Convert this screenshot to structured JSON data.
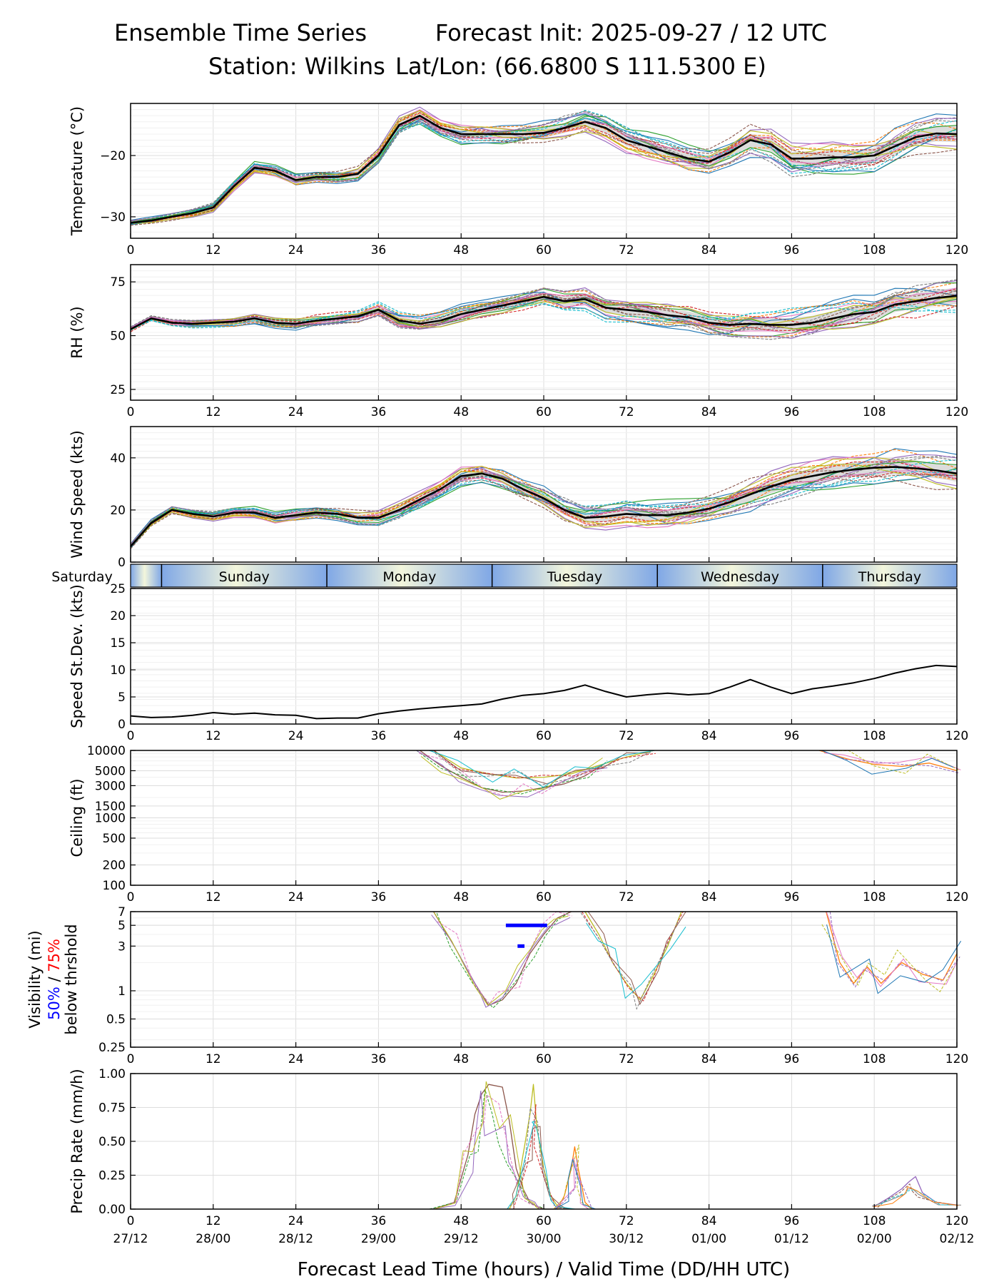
{
  "header": {
    "left": "Ensemble Time Series",
    "right": "Forecast Init: 2025-09-27 / 12 UTC",
    "station": "Station: Wilkins",
    "latlon": "Lat/Lon: (66.6800 S 111.5300 E)"
  },
  "colors": {
    "mean": "#000000",
    "spread": "#d3d3d3",
    "members": [
      "#1f77b4",
      "#ff7f0e",
      "#2ca02c",
      "#d62728",
      "#9467bd",
      "#8c564b",
      "#e377c2",
      "#7f7f7f",
      "#bcbd22",
      "#17becf"
    ],
    "day_gradient_light": "#f3f6dc",
    "day_gradient_dark": "#7fa7e6",
    "vis50": "#0000ff",
    "vis75": "#ff0000"
  },
  "x_axis": {
    "label": "Forecast Lead Time (hours) / Valid Time (DD/HH UTC)",
    "ticks": [
      0,
      12,
      24,
      36,
      48,
      60,
      72,
      84,
      96,
      108,
      120
    ],
    "tick_labels": [
      "0",
      "12",
      "24",
      "36",
      "48",
      "60",
      "72",
      "84",
      "96",
      "108",
      "120"
    ],
    "valid_labels": [
      "27/12",
      "28/00",
      "28/12",
      "29/00",
      "29/12",
      "30/00",
      "30/12",
      "01/00",
      "01/12",
      "02/00",
      "02/12"
    ]
  },
  "day_band": {
    "first_label": "Saturday",
    "days": [
      "Sunday",
      "Monday",
      "Tuesday",
      "Wednesday",
      "Thursday"
    ],
    "boundaries": [
      4.5,
      28.5,
      52.5,
      76.5,
      100.5
    ]
  },
  "chart_data": [
    {
      "id": "temp",
      "type": "line",
      "ylabel": "Temperature (°C)",
      "ylim": [
        -33.5,
        -11.5
      ],
      "yticks": [
        -30,
        -20
      ],
      "ytick_labels": [
        "−30",
        "−20"
      ],
      "grid": "minor-y",
      "series": [
        {
          "name": "ensemble mean",
          "x": [
            0,
            3,
            6,
            9,
            12,
            15,
            18,
            21,
            24,
            27,
            30,
            33,
            36,
            39,
            42,
            45,
            48,
            51,
            54,
            57,
            60,
            63,
            66,
            69,
            72,
            75,
            78,
            81,
            84,
            87,
            90,
            93,
            96,
            99,
            102,
            105,
            108,
            111,
            114,
            117,
            120
          ],
          "values": [
            -31,
            -30.6,
            -30,
            -29.4,
            -28.5,
            -25,
            -22,
            -22.5,
            -24,
            -23.5,
            -23.5,
            -23,
            -20,
            -15,
            -13.5,
            -15.5,
            -16.5,
            -16.5,
            -16.5,
            -16.5,
            -16.3,
            -15.5,
            -14.5,
            -15.5,
            -17.5,
            -18.5,
            -19.5,
            -20.5,
            -21,
            -19.5,
            -17.5,
            -18.2,
            -20.5,
            -20.5,
            -20.3,
            -20.3,
            -20,
            -18.5,
            -17,
            -16.4,
            -16.5
          ]
        }
      ]
    },
    {
      "id": "rh",
      "type": "line",
      "ylabel": "RH (%)",
      "ylim": [
        20,
        83
      ],
      "yticks": [
        25,
        50,
        75
      ],
      "ytick_labels": [
        "25",
        "50",
        "75"
      ],
      "grid": "minor-y",
      "series": [
        {
          "name": "ensemble mean",
          "x": [
            0,
            3,
            6,
            9,
            12,
            15,
            18,
            21,
            24,
            27,
            30,
            33,
            36,
            39,
            42,
            45,
            48,
            51,
            54,
            57,
            60,
            63,
            66,
            69,
            72,
            75,
            78,
            81,
            84,
            87,
            90,
            93,
            96,
            99,
            102,
            105,
            108,
            111,
            114,
            117,
            120
          ],
          "values": [
            53,
            58,
            56,
            55.5,
            56,
            56.5,
            58,
            56,
            55.5,
            57,
            58,
            59,
            62,
            57,
            55.5,
            57,
            60,
            62,
            64,
            66,
            68,
            66,
            67,
            63,
            62,
            61,
            59.5,
            58.5,
            56,
            55,
            55.5,
            55,
            55,
            56,
            58,
            60,
            61,
            64.5,
            66,
            67.5,
            68.5
          ]
        }
      ]
    },
    {
      "id": "wind",
      "type": "line",
      "ylabel": "Wind Speed (kts)",
      "ylim": [
        0,
        52
      ],
      "yticks": [
        0,
        20,
        40
      ],
      "ytick_labels": [
        "0",
        "20",
        "40"
      ],
      "grid": "minor-y",
      "series": [
        {
          "name": "ensemble mean",
          "x": [
            0,
            3,
            6,
            9,
            12,
            15,
            18,
            21,
            24,
            27,
            30,
            33,
            36,
            39,
            42,
            45,
            48,
            51,
            54,
            57,
            60,
            63,
            66,
            69,
            72,
            75,
            78,
            81,
            84,
            87,
            90,
            93,
            96,
            99,
            102,
            105,
            108,
            111,
            114,
            117,
            120
          ],
          "values": [
            6,
            15,
            20,
            18.5,
            17.5,
            19,
            19,
            17,
            18,
            19,
            18.5,
            17,
            17,
            20,
            24,
            28,
            33,
            34,
            32,
            28,
            24.5,
            20,
            17,
            17.5,
            18.5,
            18,
            18,
            19,
            20.5,
            23,
            26,
            29,
            31.5,
            33,
            34.5,
            35.5,
            36.2,
            36.5,
            36,
            35.2,
            34
          ]
        }
      ]
    },
    {
      "id": "sd",
      "type": "line",
      "ylabel": "Speed St.Dev. (kts)",
      "ylim": [
        0,
        25
      ],
      "yticks": [
        0,
        5,
        10,
        15,
        20,
        25
      ],
      "ytick_labels": [
        "0",
        "5",
        "10",
        "15",
        "20",
        "25"
      ],
      "grid": "minor-y",
      "series": [
        {
          "name": "speed st.dev.",
          "x": [
            0,
            3,
            6,
            9,
            12,
            15,
            18,
            21,
            24,
            27,
            30,
            33,
            36,
            39,
            42,
            45,
            48,
            51,
            54,
            57,
            60,
            63,
            66,
            69,
            72,
            75,
            78,
            81,
            84,
            87,
            90,
            93,
            96,
            99,
            102,
            105,
            108,
            111,
            114,
            117,
            120
          ],
          "values": [
            1.5,
            1.2,
            1.3,
            1.6,
            2.1,
            1.8,
            2.0,
            1.7,
            1.6,
            1.0,
            1.1,
            1.1,
            1.9,
            2.4,
            2.8,
            3.1,
            3.4,
            3.7,
            4.6,
            5.3,
            5.6,
            6.2,
            7.2,
            6.0,
            5.0,
            5.4,
            5.7,
            5.4,
            5.6,
            6.8,
            8.2,
            6.8,
            5.6,
            6.5,
            7.0,
            7.6,
            8.4,
            9.4,
            10.2,
            10.8,
            10.6
          ]
        }
      ]
    },
    {
      "id": "ceiling",
      "type": "line",
      "ylabel": "Ceiling (ft)",
      "scale": "log",
      "ylim": [
        100,
        10000
      ],
      "yticks": [
        100,
        200,
        500,
        1000,
        1500,
        3000,
        5000,
        10000
      ],
      "ytick_labels": [
        "100",
        "200",
        "500",
        "1000",
        "1500",
        "3000",
        "5000",
        "10000"
      ],
      "grid": "minor-y",
      "series": [
        {
          "name": "member low",
          "x": [
            42,
            45,
            48,
            51,
            54,
            57,
            60,
            63,
            66,
            69
          ],
          "values": [
            10000,
            6000,
            4000,
            2800,
            2400,
            2500,
            2800,
            3200,
            4200,
            6500
          ]
        },
        {
          "name": "member high",
          "x": [
            44,
            48,
            52,
            56,
            60,
            64,
            68,
            72,
            76
          ],
          "values": [
            10000,
            5500,
            4500,
            3900,
            4000,
            4500,
            6000,
            8000,
            10000
          ]
        },
        {
          "name": "member late",
          "x": [
            100,
            104,
            108,
            112,
            116,
            120
          ],
          "values": [
            10000,
            7500,
            6200,
            5800,
            6500,
            5000
          ]
        }
      ]
    },
    {
      "id": "vis",
      "type": "line",
      "ylabel_parts": [
        "Visibility (mi)",
        "50%",
        "/",
        "75%",
        "below thrshold"
      ],
      "scale": "log",
      "ylim": [
        0.25,
        7
      ],
      "yticks": [
        0.25,
        0.5,
        1,
        3,
        5,
        7
      ],
      "ytick_labels": [
        "0.25",
        "0.5",
        "1",
        "3",
        "5",
        "7"
      ],
      "grid": "minor-y",
      "series": [
        {
          "name": "member low",
          "x": [
            44,
            47,
            50,
            52,
            54,
            56,
            58,
            60,
            62,
            64
          ],
          "values": [
            7,
            3,
            1.2,
            0.7,
            0.8,
            1.2,
            2.5,
            4,
            6,
            7
          ]
        },
        {
          "name": "member dip",
          "x": [
            66,
            68,
            70,
            72,
            74,
            76,
            78,
            80
          ],
          "values": [
            7,
            4,
            2,
            1.2,
            0.8,
            1.5,
            3,
            7
          ]
        },
        {
          "name": "member late",
          "x": [
            101,
            103,
            105,
            107,
            109,
            112,
            115,
            118,
            120
          ],
          "values": [
            7,
            2,
            1.2,
            1.8,
            1.2,
            2.0,
            1.5,
            1.3,
            2.5
          ]
        },
        {
          "name": "50% below threshold",
          "x": [
            54.5,
            56,
            58,
            60,
            60.5
          ],
          "values": [
            5,
            5,
            5,
            5,
            5
          ]
        },
        {
          "name": "50% below threshold (2)",
          "x": [
            56.2,
            57.2
          ],
          "values": [
            3,
            3
          ]
        }
      ]
    },
    {
      "id": "precip",
      "type": "line",
      "ylabel": "Precip Rate (mm/h)",
      "ylim": [
        0,
        1
      ],
      "yticks": [
        0,
        0.25,
        0.5,
        0.75,
        1
      ],
      "ytick_labels": [
        "0.00",
        "0.25",
        "0.50",
        "0.75",
        "1.00"
      ],
      "grid": "major-y",
      "series": [
        {
          "name": "member brown",
          "x": [
            44,
            47,
            49,
            50,
            51,
            52,
            54,
            55,
            56,
            57,
            58,
            59,
            60,
            62
          ],
          "values": [
            0,
            0.05,
            0.4,
            0.7,
            0.85,
            0.92,
            0.9,
            0.65,
            0.3,
            0.15,
            0.05,
            0.02,
            0,
            0
          ]
        },
        {
          "name": "member blue",
          "x": [
            55,
            56,
            57,
            58,
            58.5,
            59,
            60,
            61,
            62,
            64
          ],
          "values": [
            0,
            0.1,
            0.4,
            0.7,
            0.92,
            0.6,
            0.3,
            0.1,
            0.02,
            0
          ]
        },
        {
          "name": "member pink",
          "x": [
            62,
            63,
            64,
            64.5,
            65,
            66,
            67
          ],
          "values": [
            0,
            0.1,
            0.3,
            0.46,
            0.3,
            0.05,
            0
          ]
        },
        {
          "name": "member olive",
          "x": [
            108,
            110,
            112,
            113,
            114,
            115,
            117,
            120
          ],
          "values": [
            0.02,
            0.08,
            0.15,
            0.2,
            0.24,
            0.12,
            0.05,
            0.03
          ]
        }
      ]
    }
  ]
}
